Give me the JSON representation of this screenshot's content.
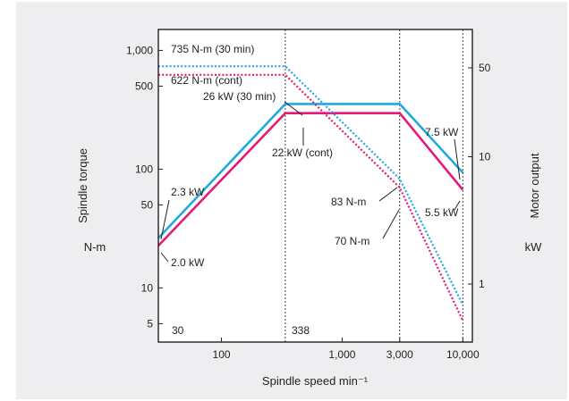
{
  "colors": {
    "panel": "#eeeef0",
    "plot_bg": "#ffffff",
    "axis": "#231f20",
    "series_30min": "#1fa9e1",
    "series_cont": "#e5197b"
  },
  "chart_data": {
    "type": "line",
    "title": "",
    "xlabel": "Spindle speed min⁻¹",
    "ylabel_left": "Spindle torque",
    "ylabel_left_unit": "N-m",
    "ylabel_right": "Motor output",
    "ylabel_right_unit": "kW",
    "x_scale": "log",
    "y_scale": "log",
    "xlim": [
      30,
      12000
    ],
    "ylim_left": [
      3.5,
      1500
    ],
    "ylim_right": [
      0.35,
      100
    ],
    "x_ticks": [
      {
        "value": 100,
        "label": "100"
      },
      {
        "value": 1000,
        "label": "1,000"
      },
      {
        "value": 3000,
        "label": "3,000"
      },
      {
        "value": 10000,
        "label": "10,000"
      }
    ],
    "y_left_ticks": [
      {
        "value": 1000,
        "label": "1,000"
      },
      {
        "value": 500,
        "label": "500"
      },
      {
        "value": 100,
        "label": "100"
      },
      {
        "value": 50,
        "label": "50"
      },
      {
        "value": 10,
        "label": "10"
      },
      {
        "value": 5,
        "label": "5"
      }
    ],
    "y_right_ticks": [
      {
        "value": 50,
        "label": "50"
      },
      {
        "value": 10,
        "label": "10"
      },
      {
        "value": 1,
        "label": "1"
      }
    ],
    "series": [
      {
        "key": "power_30min",
        "axis": "right",
        "style": "solid",
        "color": "series_30min",
        "x": [
          30,
          338,
          3000,
          10000
        ],
        "y": [
          2.3,
          26,
          26,
          7.5
        ]
      },
      {
        "key": "power_cont",
        "axis": "right",
        "style": "solid",
        "color": "series_cont",
        "x": [
          30,
          338,
          3000,
          10000
        ],
        "y": [
          2.0,
          22,
          22,
          5.5
        ]
      },
      {
        "key": "torque_30min",
        "axis": "left",
        "style": "dotted",
        "color": "series_30min",
        "x": [
          30,
          338,
          3000,
          10000
        ],
        "y": [
          735,
          735,
          83,
          7.2
        ]
      },
      {
        "key": "torque_cont",
        "axis": "left",
        "style": "dotted",
        "color": "series_cont",
        "x": [
          30,
          338,
          3000,
          10000
        ],
        "y": [
          622,
          622,
          70,
          5.3
        ]
      }
    ],
    "reference_lines_x": [
      30,
      338,
      3000,
      10000
    ],
    "annotations": {
      "torque_30min": "735 N-m (30 min)",
      "torque_cont": "622 N-m (cont)",
      "power_30min": "26 kW (30 min)",
      "power_cont": "22 kW (cont)",
      "power_30min_low": "2.3 kW",
      "power_cont_low": "2.0 kW",
      "power_30min_high": "7.5 kW",
      "power_cont_high": "5.5 kW",
      "torque_30min_3000": "83 N-m",
      "torque_cont_3000": "70 N-m",
      "speed_low": "30",
      "speed_base": "338"
    }
  }
}
